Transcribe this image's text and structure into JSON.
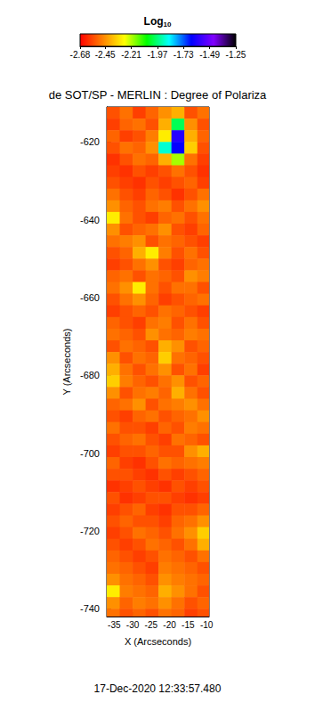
{
  "chart_data": {
    "type": "heatmap",
    "title": "de SOT/SP - MERLIN : Degree of Polariza",
    "xlabel": "X (Arcseconds)",
    "ylabel": "Y (Arcseconds)",
    "annotation": "17-Dec-2020 12:33:57.480",
    "xlim": [
      -37,
      -9.3
    ],
    "ylim": [
      -742,
      -611
    ],
    "xticks": [
      -35,
      -30,
      -25,
      -20,
      -15,
      -10
    ],
    "yticks": [
      -740,
      -720,
      -700,
      -680,
      -660,
      -640,
      -620
    ],
    "x_edges": [
      -37,
      -33.5,
      -30,
      -26.5,
      -23,
      -19.5,
      -16,
      -12.5,
      -9.3
    ],
    "y_edges": [
      -611,
      -614,
      -617,
      -620,
      -623,
      -626,
      -629,
      -632,
      -635,
      -638,
      -641,
      -644,
      -647,
      -650,
      -653,
      -656,
      -659,
      -662,
      -665,
      -668,
      -671,
      -674,
      -677,
      -680,
      -683,
      -686,
      -689,
      -692,
      -695,
      -698,
      -701,
      -704,
      -707,
      -710,
      -713,
      -716,
      -719,
      -722,
      -725,
      -728,
      -731,
      -734,
      -737,
      -740,
      -742
    ],
    "values": [
      [
        -2.55,
        -2.5,
        -2.58,
        -2.52,
        -2.45,
        -2.4,
        -2.55,
        -2.5
      ],
      [
        -2.58,
        -2.52,
        -2.5,
        -2.55,
        -2.4,
        -2.0,
        -2.45,
        -2.55
      ],
      [
        -2.52,
        -2.58,
        -2.55,
        -2.48,
        -2.3,
        -1.6,
        -2.4,
        -2.52
      ],
      [
        -2.55,
        -2.5,
        -2.52,
        -2.45,
        -1.9,
        -1.65,
        -2.35,
        -2.55
      ],
      [
        -2.6,
        -2.55,
        -2.5,
        -2.52,
        -2.4,
        -2.2,
        -2.5,
        -2.58
      ],
      [
        -2.58,
        -2.6,
        -2.55,
        -2.58,
        -2.55,
        -2.5,
        -2.55,
        -2.6
      ],
      [
        -2.55,
        -2.58,
        -2.6,
        -2.55,
        -2.58,
        -2.55,
        -2.52,
        -2.58
      ],
      [
        -2.5,
        -2.55,
        -2.58,
        -2.52,
        -2.55,
        -2.6,
        -2.55,
        -2.5
      ],
      [
        -2.45,
        -2.52,
        -2.55,
        -2.5,
        -2.48,
        -2.55,
        -2.5,
        -2.45
      ],
      [
        -2.3,
        -2.5,
        -2.55,
        -2.58,
        -2.52,
        -2.5,
        -2.55,
        -2.5
      ],
      [
        -2.45,
        -2.55,
        -2.52,
        -2.5,
        -2.45,
        -2.55,
        -2.58,
        -2.52
      ],
      [
        -2.5,
        -2.48,
        -2.45,
        -2.55,
        -2.5,
        -2.52,
        -2.55,
        -2.58
      ],
      [
        -2.55,
        -2.52,
        -2.4,
        -2.3,
        -2.48,
        -2.55,
        -2.5,
        -2.55
      ],
      [
        -2.58,
        -2.55,
        -2.5,
        -2.45,
        -2.55,
        -2.58,
        -2.52,
        -2.5
      ],
      [
        -2.52,
        -2.5,
        -2.55,
        -2.5,
        -2.52,
        -2.55,
        -2.45,
        -2.48
      ],
      [
        -2.5,
        -2.45,
        -2.3,
        -2.5,
        -2.55,
        -2.5,
        -2.5,
        -2.55
      ],
      [
        -2.55,
        -2.5,
        -2.45,
        -2.52,
        -2.58,
        -2.55,
        -2.52,
        -2.5
      ],
      [
        -2.58,
        -2.55,
        -2.52,
        -2.55,
        -2.5,
        -2.52,
        -2.55,
        -2.58
      ],
      [
        -2.52,
        -2.55,
        -2.58,
        -2.5,
        -2.48,
        -2.55,
        -2.5,
        -2.55
      ],
      [
        -2.5,
        -2.52,
        -2.55,
        -2.45,
        -2.5,
        -2.52,
        -2.48,
        -2.5
      ],
      [
        -2.55,
        -2.5,
        -2.52,
        -2.55,
        -2.4,
        -2.45,
        -2.55,
        -2.52
      ],
      [
        -2.45,
        -2.55,
        -2.5,
        -2.52,
        -2.35,
        -2.5,
        -2.52,
        -2.55
      ],
      [
        -2.4,
        -2.5,
        -2.55,
        -2.5,
        -2.45,
        -2.55,
        -2.5,
        -2.58
      ],
      [
        -2.35,
        -2.48,
        -2.52,
        -2.55,
        -2.5,
        -2.45,
        -2.55,
        -2.52
      ],
      [
        -2.45,
        -2.55,
        -2.5,
        -2.48,
        -2.52,
        -2.4,
        -2.5,
        -2.55
      ],
      [
        -2.52,
        -2.5,
        -2.45,
        -2.55,
        -2.5,
        -2.48,
        -2.45,
        -2.5
      ],
      [
        -2.55,
        -2.58,
        -2.52,
        -2.5,
        -2.55,
        -2.52,
        -2.5,
        -2.45
      ],
      [
        -2.5,
        -2.55,
        -2.55,
        -2.58,
        -2.52,
        -2.55,
        -2.48,
        -2.5
      ],
      [
        -2.55,
        -2.52,
        -2.5,
        -2.55,
        -2.58,
        -2.5,
        -2.52,
        -2.55
      ],
      [
        -2.58,
        -2.55,
        -2.55,
        -2.52,
        -2.55,
        -2.55,
        -2.45,
        -2.4
      ],
      [
        -2.52,
        -2.58,
        -2.6,
        -2.55,
        -2.5,
        -2.52,
        -2.5,
        -2.48
      ],
      [
        -2.55,
        -2.55,
        -2.58,
        -2.6,
        -2.55,
        -2.58,
        -2.55,
        -2.52
      ],
      [
        -2.6,
        -2.58,
        -2.55,
        -2.58,
        -2.6,
        -2.55,
        -2.58,
        -2.55
      ],
      [
        -2.55,
        -2.6,
        -2.58,
        -2.55,
        -2.55,
        -2.58,
        -2.6,
        -2.58
      ],
      [
        -2.58,
        -2.55,
        -2.52,
        -2.58,
        -2.6,
        -2.55,
        -2.55,
        -2.52
      ],
      [
        -2.55,
        -2.52,
        -2.55,
        -2.55,
        -2.58,
        -2.52,
        -2.5,
        -2.45
      ],
      [
        -2.58,
        -2.55,
        -2.5,
        -2.52,
        -2.55,
        -2.5,
        -2.45,
        -2.35
      ],
      [
        -2.55,
        -2.58,
        -2.55,
        -2.5,
        -2.52,
        -2.55,
        -2.5,
        -2.4
      ],
      [
        -2.52,
        -2.55,
        -2.58,
        -2.55,
        -2.5,
        -2.52,
        -2.55,
        -2.5
      ],
      [
        -2.5,
        -2.52,
        -2.55,
        -2.58,
        -2.48,
        -2.5,
        -2.52,
        -2.55
      ],
      [
        -2.45,
        -2.5,
        -2.52,
        -2.55,
        -2.45,
        -2.48,
        -2.5,
        -2.52
      ],
      [
        -2.3,
        -2.48,
        -2.5,
        -2.52,
        -2.4,
        -2.45,
        -2.5,
        -2.55
      ],
      [
        -2.45,
        -2.52,
        -2.48,
        -2.5,
        -2.45,
        -2.5,
        -2.55,
        -2.52
      ],
      [
        -2.5,
        -2.55,
        -2.52,
        -2.55,
        -2.5,
        -2.52,
        -2.58,
        -2.55
      ]
    ],
    "colorbar": {
      "title": "Log",
      "title_subscript": "10",
      "range": [
        -2.68,
        -1.25
      ],
      "ticks": [
        -2.68,
        -2.45,
        -2.21,
        -1.97,
        -1.73,
        -1.49,
        -1.25
      ]
    }
  }
}
